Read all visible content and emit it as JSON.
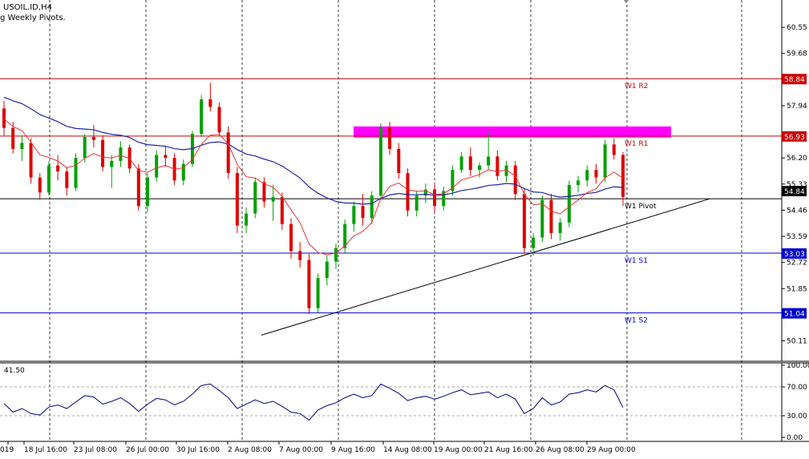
{
  "header": {
    "symbol_text": "USOIL.ID,H4",
    "indicator_text": "g Weekly Pivots."
  },
  "chart_data": {
    "type": "candlestick",
    "price_axis": {
      "ylim": [
        49.43,
        61.46
      ],
      "ticks": [
        "60.55",
        "59.68",
        "57.94",
        "56.20",
        "55.33",
        "54.46",
        "53.59",
        "52.72",
        "51.85",
        "50.11"
      ]
    },
    "time_labels": [
      "019",
      "18 Jul 16:00",
      "23 Jul 08:00",
      "26 Jul 00:00",
      "30 Jul 16:00",
      "2 Aug 08:00",
      "7 Aug 00:00",
      "9 Aug 16:00",
      "14 Aug 08:00",
      "19 Aug 00:00",
      "21 Aug 16:00",
      "26 Aug 08:00",
      "29 Aug 00:00"
    ],
    "pivot_levels": [
      {
        "name": "W1 R2",
        "value": 58.84,
        "tag": "58.84",
        "color": "#cc0000"
      },
      {
        "name": "W1 R1",
        "value": 56.93,
        "tag": "56.93",
        "color": "#cc0000"
      },
      {
        "name": "W1 Pivot",
        "value": 54.84,
        "tag": "54.84",
        "color": "#000000"
      },
      {
        "name": "W1 S1",
        "value": 53.03,
        "tag": "53.03",
        "color": "#0000cc"
      },
      {
        "name": "W1 S2",
        "value": 51.04,
        "tag": "51.04",
        "color": "#0000cc"
      }
    ],
    "resistance_zone": {
      "from": 56.88,
      "to": 57.25,
      "color": "#ff00ff"
    },
    "trendline": {
      "start": [
        0.0,
        50.3
      ],
      "end": [
        1.0,
        54.84
      ]
    },
    "colors": {
      "bull": "#00a000",
      "bear": "#dd0000",
      "ma_fast": "#ee3333",
      "ma_slow": "#2222aa",
      "rsi": "#000080"
    },
    "ohlc": [
      [
        57.85,
        58.1,
        56.95,
        57.2
      ],
      [
        57.2,
        57.4,
        56.35,
        56.5
      ],
      [
        56.5,
        56.95,
        56.1,
        56.7
      ],
      [
        56.7,
        56.85,
        55.35,
        55.55
      ],
      [
        55.55,
        55.7,
        54.8,
        55.05
      ],
      [
        55.05,
        56.1,
        54.95,
        55.95
      ],
      [
        55.95,
        56.3,
        55.45,
        55.75
      ],
      [
        55.75,
        55.9,
        54.95,
        55.2
      ],
      [
        55.2,
        56.35,
        55.1,
        56.2
      ],
      [
        56.2,
        57.0,
        56.05,
        56.9
      ],
      [
        56.9,
        57.3,
        56.55,
        56.8
      ],
      [
        56.8,
        56.95,
        55.75,
        55.9
      ],
      [
        55.9,
        56.3,
        55.2,
        56.1
      ],
      [
        56.1,
        56.75,
        55.9,
        56.55
      ],
      [
        56.55,
        56.65,
        55.7,
        55.85
      ],
      [
        55.85,
        56.0,
        54.45,
        54.6
      ],
      [
        54.6,
        55.7,
        54.4,
        55.55
      ],
      [
        55.55,
        56.45,
        55.4,
        56.3
      ],
      [
        56.3,
        56.6,
        55.9,
        56.2
      ],
      [
        56.2,
        56.35,
        55.3,
        55.45
      ],
      [
        55.45,
        56.15,
        55.3,
        56.0
      ],
      [
        56.0,
        57.1,
        55.9,
        57.0
      ],
      [
        57.0,
        58.3,
        56.9,
        58.15
      ],
      [
        58.15,
        58.7,
        57.75,
        57.9
      ],
      [
        57.9,
        58.05,
        56.95,
        57.05
      ],
      [
        57.05,
        57.25,
        55.5,
        55.7
      ],
      [
        55.7,
        55.9,
        53.7,
        53.95
      ],
      [
        53.95,
        54.55,
        53.7,
        54.35
      ],
      [
        54.35,
        55.55,
        54.2,
        55.4
      ],
      [
        55.4,
        55.55,
        54.55,
        54.75
      ],
      [
        54.75,
        55.3,
        54.1,
        54.9
      ],
      [
        54.9,
        55.05,
        53.8,
        54.0
      ],
      [
        54.0,
        54.2,
        52.85,
        53.1
      ],
      [
        53.1,
        53.4,
        52.55,
        52.8
      ],
      [
        52.8,
        53.0,
        51.0,
        51.2
      ],
      [
        51.2,
        52.35,
        51.05,
        52.2
      ],
      [
        52.2,
        52.95,
        51.95,
        52.75
      ],
      [
        52.75,
        53.35,
        52.5,
        53.2
      ],
      [
        53.2,
        54.15,
        53.05,
        54.0
      ],
      [
        54.0,
        54.75,
        53.75,
        54.6
      ],
      [
        54.6,
        55.0,
        53.95,
        54.2
      ],
      [
        54.2,
        55.1,
        54.0,
        54.95
      ],
      [
        54.95,
        57.35,
        54.8,
        57.2
      ],
      [
        57.2,
        57.4,
        56.3,
        56.5
      ],
      [
        56.5,
        56.7,
        55.5,
        55.7
      ],
      [
        55.7,
        55.85,
        54.25,
        54.45
      ],
      [
        54.45,
        55.1,
        54.25,
        54.95
      ],
      [
        54.95,
        55.35,
        54.7,
        55.15
      ],
      [
        55.15,
        55.35,
        54.4,
        54.6
      ],
      [
        54.6,
        55.25,
        54.45,
        55.1
      ],
      [
        55.1,
        55.95,
        54.95,
        55.8
      ],
      [
        55.8,
        56.4,
        55.7,
        56.25
      ],
      [
        56.25,
        56.55,
        55.6,
        55.8
      ],
      [
        55.8,
        56.05,
        55.55,
        55.95
      ],
      [
        55.95,
        57.05,
        55.8,
        56.25
      ],
      [
        56.25,
        56.45,
        55.45,
        55.6
      ],
      [
        55.6,
        56.1,
        55.4,
        55.95
      ],
      [
        55.95,
        56.1,
        54.8,
        55.0
      ],
      [
        55.0,
        55.2,
        53.0,
        53.2
      ],
      [
        53.2,
        53.7,
        52.95,
        53.55
      ],
      [
        53.55,
        54.95,
        53.4,
        54.8
      ],
      [
        54.8,
        55.0,
        53.5,
        53.7
      ],
      [
        53.7,
        54.2,
        53.45,
        54.05
      ],
      [
        54.05,
        55.45,
        53.9,
        55.3
      ],
      [
        55.3,
        55.6,
        55.05,
        55.45
      ],
      [
        55.45,
        55.95,
        55.25,
        55.8
      ],
      [
        55.8,
        56.0,
        55.35,
        55.55
      ],
      [
        55.55,
        56.8,
        55.4,
        56.65
      ],
      [
        56.65,
        56.85,
        56.15,
        56.3
      ],
      [
        56.3,
        56.4,
        54.6,
        54.9
      ]
    ],
    "rsi": {
      "ticks": [
        "100.00",
        "70.00",
        "30.00",
        "0.00"
      ],
      "level_label": "41.50",
      "values": [
        47,
        35,
        40,
        33,
        31,
        42,
        45,
        40,
        49,
        58,
        56,
        46,
        50,
        55,
        47,
        36,
        46,
        54,
        52,
        45,
        50,
        60,
        72,
        74,
        65,
        55,
        40,
        46,
        52,
        47,
        50,
        43,
        35,
        33,
        24,
        38,
        44,
        48,
        55,
        60,
        55,
        58,
        74,
        68,
        61,
        51,
        55,
        57,
        53,
        57,
        62,
        66,
        59,
        61,
        63,
        55,
        60,
        53,
        33,
        40,
        55,
        45,
        49,
        60,
        62,
        66,
        63,
        72,
        66,
        41.5
      ]
    }
  }
}
